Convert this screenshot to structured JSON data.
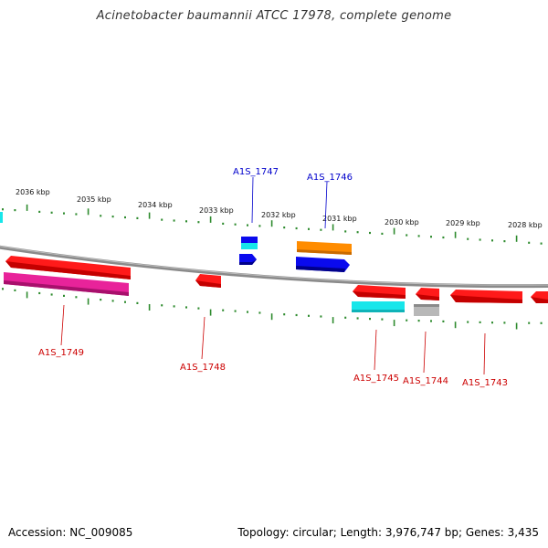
{
  "title": "Acinetobacter baumannii ATCC 17978, complete genome",
  "footer": {
    "accession": "Accession: NC_009085",
    "topology": "Topology: circular; Length: 3,976,747 bp; Genes: 3,435"
  },
  "colors": {
    "backbone": "#888888",
    "ruler": "#2e8b2e",
    "red": "#ff1a1a",
    "blue": "#0a0aee",
    "cyan": "#17e6ea",
    "magenta": "#e8239a",
    "orange": "#ff8c00",
    "gray": "#b8b8b8",
    "label_red": "#cc0000",
    "label_blue": "#0000cc"
  },
  "ruler_labels": [
    "2036 kbp",
    "2035 kbp",
    "2034 kbp",
    "2033 kbp",
    "2032 kbp",
    "2031 kbp",
    "2030 kbp",
    "2029 kbp",
    "2028 kbp"
  ],
  "gene_labels": [
    "A1S_1747",
    "A1S_1746",
    "A1S_1749",
    "A1S_1748",
    "A1S_1745",
    "A1S_1744",
    "A1S_1743"
  ]
}
